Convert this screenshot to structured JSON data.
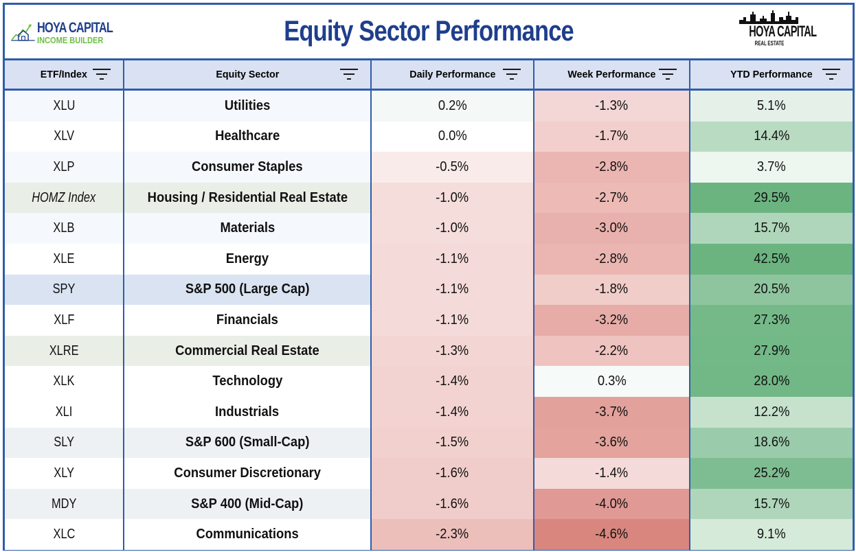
{
  "header": {
    "left_logo_line1": "HOYA CAPITAL",
    "left_logo_line2": "INCOME BUILDER",
    "title": "Equity Sector Performance",
    "right_logo_line1": "HOYA CAPITAL",
    "right_logo_line2": "REAL ESTATE"
  },
  "columns": [
    "ETF/Index",
    "Equity Sector",
    "Daily Performance",
    "Week Performance",
    "YTD Performance"
  ],
  "colors": {
    "border": "#2f5cab",
    "header_bg": "#d9e1f2",
    "title_text": "#1f3e8c",
    "logo_green": "#6cbf44"
  },
  "rows": [
    {
      "etf": "XLU",
      "sector": "Utilities",
      "daily": "0.2%",
      "week": "-1.3%",
      "ytd": "5.1%",
      "row_bg": "#f5f8fd",
      "daily_bg": "#f4f8f6",
      "week_bg": "#f3d7d6",
      "ytd_bg": "#e5f1e8"
    },
    {
      "etf": "XLV",
      "sector": "Healthcare",
      "daily": "0.0%",
      "week": "-1.7%",
      "ytd": "14.4%",
      "row_bg": "#ffffff",
      "daily_bg": "#ffffff",
      "week_bg": "#f2cfcd",
      "ytd_bg": "#b9dbc2"
    },
    {
      "etf": "XLP",
      "sector": "Consumer Staples",
      "daily": "-0.5%",
      "week": "-2.8%",
      "ytd": "3.7%",
      "row_bg": "#f5f8fd",
      "daily_bg": "#f9ebea",
      "week_bg": "#ebb6b2",
      "ytd_bg": "#eef6f0"
    },
    {
      "etf": "HOMZ Index",
      "sector": "Housing / Residential Real Estate",
      "daily": "-1.0%",
      "week": "-2.7%",
      "ytd": "29.5%",
      "row_bg": "#e9efe6",
      "daily_bg": "#f5dddb",
      "week_bg": "#edbab6",
      "ytd_bg": "#6bb480",
      "etf_italic": true
    },
    {
      "etf": "XLB",
      "sector": "Materials",
      "daily": "-1.0%",
      "week": "-3.0%",
      "ytd": "15.7%",
      "row_bg": "#f5f8fd",
      "daily_bg": "#f5dddb",
      "week_bg": "#e9b1ad",
      "ytd_bg": "#afd6ba"
    },
    {
      "etf": "XLE",
      "sector": "Energy",
      "daily": "-1.1%",
      "week": "-2.8%",
      "ytd": "42.5%",
      "row_bg": "#ffffff",
      "daily_bg": "#f4dad8",
      "week_bg": "#ebb6b2",
      "ytd_bg": "#6bb480"
    },
    {
      "etf": "SPY",
      "sector": "S&P 500 (Large Cap)",
      "daily": "-1.1%",
      "week": "-1.8%",
      "ytd": "20.5%",
      "row_bg": "#d9e3f2",
      "daily_bg": "#f4dad8",
      "week_bg": "#f1cdca",
      "ytd_bg": "#8fc59e"
    },
    {
      "etf": "XLF",
      "sector": "Financials",
      "daily": "-1.1%",
      "week": "-3.2%",
      "ytd": "27.3%",
      "row_bg": "#ffffff",
      "daily_bg": "#f4dad8",
      "week_bg": "#e7aca7",
      "ytd_bg": "#75b989"
    },
    {
      "etf": "XLRE",
      "sector": "Commercial Real Estate",
      "daily": "-1.3%",
      "week": "-2.2%",
      "ytd": "27.9%",
      "row_bg": "#e9efe6",
      "daily_bg": "#f3d6d4",
      "week_bg": "#efc3bf",
      "ytd_bg": "#73b887"
    },
    {
      "etf": "XLK",
      "sector": "Technology",
      "daily": "-1.4%",
      "week": "0.3%",
      "ytd": "28.0%",
      "row_bg": "#ffffff",
      "daily_bg": "#f2d3d1",
      "week_bg": "#f6faf8",
      "ytd_bg": "#72b786"
    },
    {
      "etf": "XLI",
      "sector": "Industrials",
      "daily": "-1.4%",
      "week": "-3.7%",
      "ytd": "12.2%",
      "row_bg": "#ffffff",
      "daily_bg": "#f2d3d1",
      "week_bg": "#e3a19b",
      "ytd_bg": "#c6e2cd"
    },
    {
      "etf": "SLY",
      "sector": "S&P 600 (Small-Cap)",
      "daily": "-1.5%",
      "week": "-3.6%",
      "ytd": "18.6%",
      "row_bg": "#eef1f4",
      "daily_bg": "#f1d0cd",
      "week_bg": "#e4a39d",
      "ytd_bg": "#9acbaa"
    },
    {
      "etf": "XLY",
      "sector": "Consumer Discretionary",
      "daily": "-1.6%",
      "week": "-1.4%",
      "ytd": "25.2%",
      "row_bg": "#ffffff",
      "daily_bg": "#f0cdca",
      "week_bg": "#f4dad8",
      "ytd_bg": "#7ebd91"
    },
    {
      "etf": "MDY",
      "sector": "S&P 400 (Mid-Cap)",
      "daily": "-1.6%",
      "week": "-4.0%",
      "ytd": "15.7%",
      "row_bg": "#eef1f4",
      "daily_bg": "#f0cdca",
      "week_bg": "#e09994",
      "ytd_bg": "#afd6ba"
    },
    {
      "etf": "XLC",
      "sector": "Communications",
      "daily": "-2.3%",
      "week": "-4.6%",
      "ytd": "9.1%",
      "row_bg": "#ffffff",
      "daily_bg": "#ecbfbb",
      "week_bg": "#d9867f",
      "ytd_bg": "#d6ead9"
    }
  ]
}
